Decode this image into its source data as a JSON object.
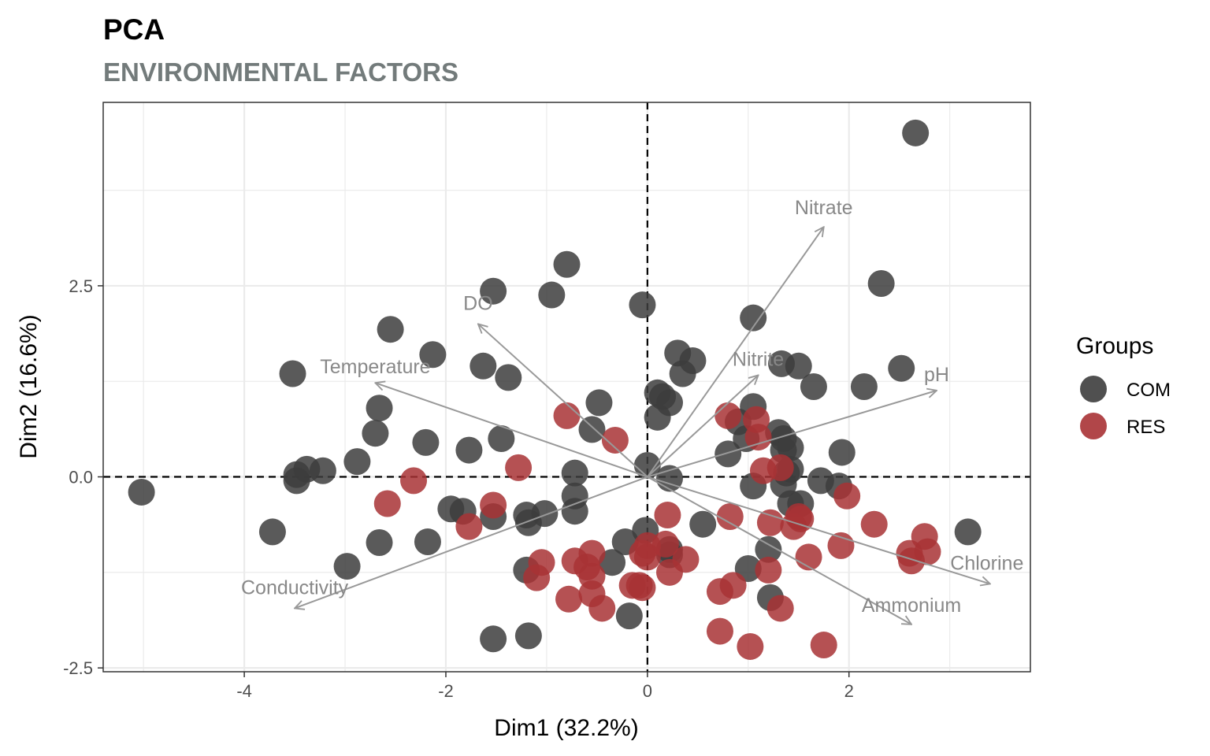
{
  "chart_data": {
    "type": "scatter",
    "title": "PCA",
    "subtitle": "ENVIRONMENTAL FACTORS",
    "xlabel": "Dim1 (32.2%)",
    "ylabel": "Dim2 (16.6%)",
    "xlim": [
      -5.4,
      3.8
    ],
    "ylim": [
      -2.55,
      4.9
    ],
    "x_ticks": [
      -4,
      -2,
      0,
      2
    ],
    "x_tick_labels": [
      "-4",
      "-2",
      "0",
      "2"
    ],
    "y_ticks": [
      -2.5,
      0,
      2.5
    ],
    "y_tick_labels": [
      "-2.5",
      "0.0",
      "2.5"
    ],
    "grid": true,
    "reference_lines": {
      "x": 0,
      "y": 0,
      "style": "dashed"
    },
    "legend": {
      "title": "Groups",
      "position": "right",
      "entries": [
        {
          "label": "COM",
          "color": "#3d3d3d"
        },
        {
          "label": "RES",
          "color": "#a83235"
        }
      ]
    },
    "series": [
      {
        "name": "COM",
        "color": "#3d3d3d",
        "points": [
          [
            2.66,
            4.5
          ],
          [
            -5.02,
            -0.2
          ],
          [
            -3.52,
            1.35
          ],
          [
            -3.48,
            -0.05
          ],
          [
            -3.48,
            0.03
          ],
          [
            -3.38,
            0.1
          ],
          [
            -3.22,
            0.08
          ],
          [
            -3.72,
            -0.72
          ],
          [
            -2.98,
            -1.17
          ],
          [
            -2.88,
            0.2
          ],
          [
            -2.7,
            0.57
          ],
          [
            -2.66,
            0.9
          ],
          [
            -2.66,
            -0.86
          ],
          [
            -2.55,
            1.93
          ],
          [
            -2.18,
            -0.85
          ],
          [
            -2.2,
            0.45
          ],
          [
            -2.13,
            1.6
          ],
          [
            -1.95,
            -0.42
          ],
          [
            -1.83,
            -0.45
          ],
          [
            -1.77,
            0.35
          ],
          [
            -1.53,
            2.43
          ],
          [
            -1.53,
            -0.52
          ],
          [
            -1.63,
            1.45
          ],
          [
            -1.38,
            1.3
          ],
          [
            -1.45,
            0.5
          ],
          [
            -1.53,
            -2.12
          ],
          [
            -1.2,
            -0.5
          ],
          [
            -1.18,
            -0.6
          ],
          [
            -1.2,
            -1.22
          ],
          [
            -1.18,
            -2.08
          ],
          [
            -1.02,
            -0.48
          ],
          [
            -0.95,
            2.38
          ],
          [
            -0.8,
            2.78
          ],
          [
            -0.72,
            0.05
          ],
          [
            -0.72,
            -0.45
          ],
          [
            -0.72,
            -0.25
          ],
          [
            -0.55,
            0.62
          ],
          [
            -0.48,
            0.97
          ],
          [
            -0.35,
            -1.12
          ],
          [
            -0.22,
            -0.85
          ],
          [
            -0.18,
            -1.82
          ],
          [
            -0.05,
            2.25
          ],
          [
            0.0,
            0.15
          ],
          [
            -0.02,
            -0.7
          ],
          [
            0.1,
            1.1
          ],
          [
            0.1,
            0.78
          ],
          [
            0.15,
            1.05
          ],
          [
            0.22,
            0.97
          ],
          [
            0.22,
            -1.02
          ],
          [
            0.22,
            -0.95
          ],
          [
            0.22,
            -0.02
          ],
          [
            0.3,
            1.62
          ],
          [
            0.35,
            1.35
          ],
          [
            0.45,
            1.52
          ],
          [
            0.55,
            -0.62
          ],
          [
            0.8,
            0.3
          ],
          [
            0.9,
            0.72
          ],
          [
            0.98,
            0.5
          ],
          [
            1.05,
            2.08
          ],
          [
            1.05,
            0.92
          ],
          [
            1.05,
            -0.12
          ],
          [
            1.0,
            -1.2
          ],
          [
            1.2,
            -0.95
          ],
          [
            1.22,
            -1.58
          ],
          [
            1.3,
            0.58
          ],
          [
            1.33,
            1.48
          ],
          [
            1.35,
            0.5
          ],
          [
            1.35,
            0.35
          ],
          [
            1.35,
            -0.1
          ],
          [
            1.38,
            0.05
          ],
          [
            1.42,
            0.1
          ],
          [
            1.42,
            -0.35
          ],
          [
            1.42,
            0.38
          ],
          [
            1.5,
            1.45
          ],
          [
            1.52,
            -0.35
          ],
          [
            1.65,
            1.18
          ],
          [
            1.72,
            -0.05
          ],
          [
            1.9,
            -0.12
          ],
          [
            1.93,
            0.32
          ],
          [
            2.15,
            1.18
          ],
          [
            2.32,
            2.53
          ],
          [
            2.52,
            1.42
          ],
          [
            3.18,
            -0.72
          ]
        ]
      },
      {
        "name": "RES",
        "color": "#a83235",
        "points": [
          [
            -2.58,
            -0.35
          ],
          [
            -2.32,
            -0.05
          ],
          [
            -1.77,
            -0.65
          ],
          [
            -1.53,
            -0.37
          ],
          [
            -1.28,
            0.12
          ],
          [
            -1.1,
            -1.32
          ],
          [
            -1.05,
            -1.12
          ],
          [
            -0.8,
            0.8
          ],
          [
            -0.78,
            -1.6
          ],
          [
            -0.72,
            -1.1
          ],
          [
            -0.6,
            -1.18
          ],
          [
            -0.55,
            -1.3
          ],
          [
            -0.55,
            -1.0
          ],
          [
            -0.55,
            -1.53
          ],
          [
            -0.45,
            -1.72
          ],
          [
            -0.32,
            0.48
          ],
          [
            -0.15,
            -1.42
          ],
          [
            -0.08,
            -1.42
          ],
          [
            -0.05,
            -1.0
          ],
          [
            -0.05,
            -1.45
          ],
          [
            0.0,
            -0.9
          ],
          [
            0.0,
            -1.05
          ],
          [
            0.2,
            -0.5
          ],
          [
            0.18,
            -0.88
          ],
          [
            0.22,
            -1.25
          ],
          [
            0.38,
            -1.08
          ],
          [
            0.72,
            -1.5
          ],
          [
            0.72,
            -2.02
          ],
          [
            0.82,
            -0.52
          ],
          [
            0.85,
            -1.42
          ],
          [
            0.8,
            0.8
          ],
          [
            1.02,
            -2.22
          ],
          [
            1.08,
            0.75
          ],
          [
            1.1,
            0.52
          ],
          [
            1.15,
            0.08
          ],
          [
            1.22,
            -0.6
          ],
          [
            1.2,
            -1.22
          ],
          [
            1.32,
            0.12
          ],
          [
            1.32,
            -1.72
          ],
          [
            1.45,
            -0.65
          ],
          [
            1.5,
            -0.52
          ],
          [
            1.52,
            -0.55
          ],
          [
            1.6,
            -1.05
          ],
          [
            1.75,
            -2.2
          ],
          [
            1.92,
            -0.9
          ],
          [
            1.98,
            -0.25
          ],
          [
            2.25,
            -0.62
          ],
          [
            2.6,
            -1.0
          ],
          [
            2.62,
            -1.1
          ],
          [
            2.75,
            -0.78
          ],
          [
            2.78,
            -0.98
          ]
        ]
      }
    ],
    "variables": [
      {
        "name": "Nitrate",
        "x": 1.75,
        "y": 3.27
      },
      {
        "name": "DO",
        "x": -1.68,
        "y": 2.0
      },
      {
        "name": "Temperature",
        "x": -2.7,
        "y": 1.23
      },
      {
        "name": "Nitrite",
        "x": 1.1,
        "y": 1.33
      },
      {
        "name": "pH",
        "x": 2.87,
        "y": 1.13
      },
      {
        "name": "Conductivity",
        "x": -3.5,
        "y": -1.72
      },
      {
        "name": "Chlorine",
        "x": 3.4,
        "y": -1.4
      },
      {
        "name": "Ammonium",
        "x": 2.62,
        "y": -1.93
      }
    ]
  }
}
